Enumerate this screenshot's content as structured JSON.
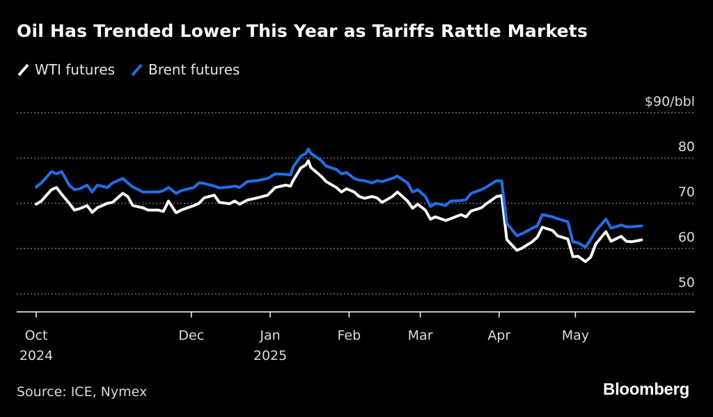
{
  "title": "Oil Has Trended Lower This Year as Tariffs Rattle Markets",
  "source": "Source: ICE, Nymex",
  "brand": "Bloomberg",
  "colors": {
    "background": "#000000",
    "wti": "#ffffff",
    "brent": "#1f6fe8",
    "grid": "#8a8a8a"
  },
  "chart_data": {
    "type": "line",
    "title": "Oil Has Trended Lower This Year as Tariffs Rattle Markets",
    "ylabel": "",
    "y_unit_label": "$90/bbl",
    "ylim": [
      46,
      90
    ],
    "yticks": [
      50,
      60,
      70,
      80,
      90
    ],
    "ytick_labels": [
      "50",
      "60",
      "70",
      "80",
      "$90/bbl"
    ],
    "grid": true,
    "legend_position": "top-left",
    "xlim": [
      "2024-10-01",
      "2025-05-31"
    ],
    "x_ticks": [
      {
        "date": "2024-10-01",
        "label": "Oct",
        "label2": "2024"
      },
      {
        "date": "2024-12-01",
        "label": "Dec",
        "label2": ""
      },
      {
        "date": "2025-01-01",
        "label": "Jan",
        "label2": "2025"
      },
      {
        "date": "2025-02-01",
        "label": "Feb",
        "label2": ""
      },
      {
        "date": "2025-03-01",
        "label": "Mar",
        "label2": ""
      },
      {
        "date": "2025-04-01",
        "label": "Apr",
        "label2": ""
      },
      {
        "date": "2025-05-01",
        "label": "May",
        "label2": ""
      }
    ],
    "series": [
      {
        "name": "WTI futures",
        "color": "#ffffff",
        "points": [
          [
            "2024-10-01",
            69.8
          ],
          [
            "2024-10-03",
            70.5
          ],
          [
            "2024-10-07",
            73.0
          ],
          [
            "2024-10-09",
            73.5
          ],
          [
            "2024-10-11",
            72.0
          ],
          [
            "2024-10-14",
            70.0
          ],
          [
            "2024-10-16",
            68.5
          ],
          [
            "2024-10-18",
            68.8
          ],
          [
            "2024-10-21",
            69.5
          ],
          [
            "2024-10-23",
            68.0
          ],
          [
            "2024-10-25",
            69.0
          ],
          [
            "2024-10-29",
            70.0
          ],
          [
            "2024-10-31",
            70.2
          ],
          [
            "2024-11-04",
            72.2
          ],
          [
            "2024-11-06",
            71.5
          ],
          [
            "2024-11-08",
            69.5
          ],
          [
            "2024-11-12",
            69.0
          ],
          [
            "2024-11-14",
            68.5
          ],
          [
            "2024-11-18",
            68.5
          ],
          [
            "2024-11-20",
            68.2
          ],
          [
            "2024-11-22",
            70.5
          ],
          [
            "2024-11-25",
            67.9
          ],
          [
            "2024-11-27",
            68.5
          ],
          [
            "2024-12-02",
            69.5
          ],
          [
            "2024-12-04",
            70.0
          ],
          [
            "2024-12-06",
            71.2
          ],
          [
            "2024-12-10",
            71.8
          ],
          [
            "2024-12-12",
            70.2
          ],
          [
            "2024-12-16",
            69.9
          ],
          [
            "2024-12-18",
            70.5
          ],
          [
            "2024-12-20",
            69.8
          ],
          [
            "2024-12-23",
            70.7
          ],
          [
            "2024-12-27",
            71.2
          ],
          [
            "2024-12-31",
            71.8
          ],
          [
            "2025-01-03",
            73.5
          ],
          [
            "2025-01-07",
            74.0
          ],
          [
            "2025-01-09",
            73.8
          ],
          [
            "2025-01-10",
            75.0
          ],
          [
            "2025-01-13",
            77.8
          ],
          [
            "2025-01-15",
            78.5
          ],
          [
            "2025-01-16",
            79.4
          ],
          [
            "2025-01-17",
            77.9
          ],
          [
            "2025-01-21",
            76.0
          ],
          [
            "2025-01-23",
            74.8
          ],
          [
            "2025-01-27",
            73.5
          ],
          [
            "2025-01-29",
            72.5
          ],
          [
            "2025-01-31",
            73.2
          ],
          [
            "2025-02-03",
            72.5
          ],
          [
            "2025-02-05",
            71.5
          ],
          [
            "2025-02-07",
            71.1
          ],
          [
            "2025-02-10",
            71.5
          ],
          [
            "2025-02-12",
            71.2
          ],
          [
            "2025-02-14",
            70.2
          ],
          [
            "2025-02-18",
            71.5
          ],
          [
            "2025-02-20",
            72.5
          ],
          [
            "2025-02-24",
            70.5
          ],
          [
            "2025-02-26",
            68.9
          ],
          [
            "2025-02-28",
            69.8
          ],
          [
            "2025-03-03",
            68.5
          ],
          [
            "2025-03-05",
            66.5
          ],
          [
            "2025-03-07",
            67.0
          ],
          [
            "2025-03-11",
            66.2
          ],
          [
            "2025-03-13",
            66.6
          ],
          [
            "2025-03-17",
            67.5
          ],
          [
            "2025-03-19",
            67.0
          ],
          [
            "2025-03-21",
            68.3
          ],
          [
            "2025-03-25",
            69.0
          ],
          [
            "2025-03-27",
            69.9
          ],
          [
            "2025-03-31",
            71.5
          ],
          [
            "2025-04-02",
            71.7
          ],
          [
            "2025-04-04",
            62.0
          ],
          [
            "2025-04-08",
            59.6
          ],
          [
            "2025-04-10",
            60.1
          ],
          [
            "2025-04-14",
            61.5
          ],
          [
            "2025-04-16",
            62.5
          ],
          [
            "2025-04-18",
            64.7
          ],
          [
            "2025-04-22",
            64.0
          ],
          [
            "2025-04-24",
            62.8
          ],
          [
            "2025-04-28",
            62.1
          ],
          [
            "2025-04-30",
            58.2
          ],
          [
            "2025-05-02",
            58.3
          ],
          [
            "2025-05-05",
            57.1
          ],
          [
            "2025-05-07",
            58.1
          ],
          [
            "2025-05-09",
            61.0
          ],
          [
            "2025-05-13",
            63.7
          ],
          [
            "2025-05-15",
            61.6
          ],
          [
            "2025-05-19",
            62.7
          ],
          [
            "2025-05-21",
            61.6
          ],
          [
            "2025-05-23",
            61.5
          ],
          [
            "2025-05-27",
            61.9
          ]
        ]
      },
      {
        "name": "Brent futures",
        "color": "#1f6fe8",
        "points": [
          [
            "2024-10-01",
            73.6
          ],
          [
            "2024-10-03",
            74.5
          ],
          [
            "2024-10-07",
            77.0
          ],
          [
            "2024-10-09",
            76.5
          ],
          [
            "2024-10-11",
            77.0
          ],
          [
            "2024-10-14",
            74.0
          ],
          [
            "2024-10-16",
            73.0
          ],
          [
            "2024-10-18",
            73.2
          ],
          [
            "2024-10-21",
            74.0
          ],
          [
            "2024-10-23",
            72.5
          ],
          [
            "2024-10-25",
            74.0
          ],
          [
            "2024-10-29",
            73.5
          ],
          [
            "2024-10-31",
            74.5
          ],
          [
            "2024-11-04",
            75.5
          ],
          [
            "2024-11-06",
            74.5
          ],
          [
            "2024-11-08",
            73.6
          ],
          [
            "2024-11-12",
            72.5
          ],
          [
            "2024-11-14",
            72.5
          ],
          [
            "2024-11-18",
            72.5
          ],
          [
            "2024-11-20",
            72.8
          ],
          [
            "2024-11-22",
            73.5
          ],
          [
            "2024-11-25",
            72.2
          ],
          [
            "2024-11-27",
            72.8
          ],
          [
            "2024-12-02",
            73.5
          ],
          [
            "2024-12-04",
            74.5
          ],
          [
            "2024-12-06",
            74.4
          ],
          [
            "2024-12-10",
            73.8
          ],
          [
            "2024-12-12",
            73.4
          ],
          [
            "2024-12-16",
            73.6
          ],
          [
            "2024-12-18",
            73.8
          ],
          [
            "2024-12-20",
            73.5
          ],
          [
            "2024-12-23",
            74.8
          ],
          [
            "2024-12-27",
            75.0
          ],
          [
            "2024-12-31",
            75.5
          ],
          [
            "2025-01-03",
            76.5
          ],
          [
            "2025-01-07",
            76.4
          ],
          [
            "2025-01-09",
            76.3
          ],
          [
            "2025-01-10",
            78.0
          ],
          [
            "2025-01-13",
            80.4
          ],
          [
            "2025-01-15",
            81.0
          ],
          [
            "2025-01-16",
            82.0
          ],
          [
            "2025-01-17",
            81.0
          ],
          [
            "2025-01-21",
            79.5
          ],
          [
            "2025-01-23",
            78.2
          ],
          [
            "2025-01-27",
            77.5
          ],
          [
            "2025-01-29",
            76.5
          ],
          [
            "2025-01-31",
            76.8
          ],
          [
            "2025-02-03",
            75.5
          ],
          [
            "2025-02-05",
            75.1
          ],
          [
            "2025-02-07",
            75.0
          ],
          [
            "2025-02-10",
            74.5
          ],
          [
            "2025-02-12",
            75.0
          ],
          [
            "2025-02-14",
            74.8
          ],
          [
            "2025-02-18",
            75.5
          ],
          [
            "2025-02-20",
            76.0
          ],
          [
            "2025-02-24",
            74.5
          ],
          [
            "2025-02-26",
            72.5
          ],
          [
            "2025-02-28",
            73.0
          ],
          [
            "2025-03-03",
            71.5
          ],
          [
            "2025-03-05",
            69.3
          ],
          [
            "2025-03-07",
            70.0
          ],
          [
            "2025-03-11",
            69.5
          ],
          [
            "2025-03-13",
            70.5
          ],
          [
            "2025-03-17",
            70.6
          ],
          [
            "2025-03-19",
            70.8
          ],
          [
            "2025-03-21",
            72.2
          ],
          [
            "2025-03-25",
            73.0
          ],
          [
            "2025-03-27",
            73.6
          ],
          [
            "2025-03-31",
            75.0
          ],
          [
            "2025-04-02",
            74.9
          ],
          [
            "2025-04-04",
            65.6
          ],
          [
            "2025-04-08",
            62.8
          ],
          [
            "2025-04-10",
            63.3
          ],
          [
            "2025-04-14",
            64.5
          ],
          [
            "2025-04-16",
            65.0
          ],
          [
            "2025-04-18",
            67.5
          ],
          [
            "2025-04-22",
            67.0
          ],
          [
            "2025-04-24",
            66.6
          ],
          [
            "2025-04-28",
            65.9
          ],
          [
            "2025-04-30",
            61.5
          ],
          [
            "2025-05-02",
            61.3
          ],
          [
            "2025-05-05",
            60.3
          ],
          [
            "2025-05-07",
            62.0
          ],
          [
            "2025-05-09",
            63.9
          ],
          [
            "2025-05-13",
            66.5
          ],
          [
            "2025-05-15",
            64.5
          ],
          [
            "2025-05-19",
            65.2
          ],
          [
            "2025-05-21",
            64.8
          ],
          [
            "2025-05-23",
            64.8
          ],
          [
            "2025-05-27",
            65.0
          ]
        ]
      }
    ]
  }
}
